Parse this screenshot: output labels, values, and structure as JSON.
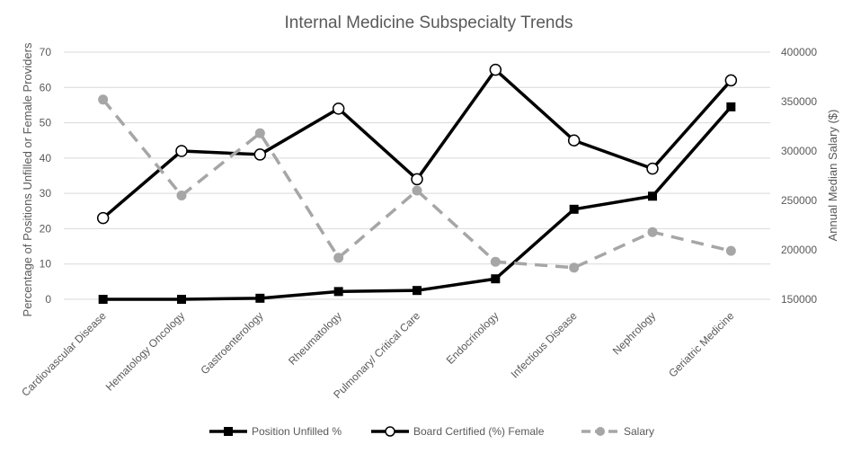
{
  "chart_data": {
    "type": "line",
    "title": "Internal Medicine Subspecialty Trends",
    "ylabel": "Percentage of Positions Unfilled or Female Providers",
    "y2label": "Annual Median Salary ($)",
    "xlabel": "",
    "ylim": [
      0,
      70
    ],
    "y2lim": [
      150000,
      400000
    ],
    "yticks": [
      "0",
      "10",
      "20",
      "30",
      "40",
      "50",
      "60",
      "70"
    ],
    "y2ticks": [
      "150000",
      "200000",
      "250000",
      "300000",
      "350000",
      "400000"
    ],
    "grid": true,
    "legend_position": "bottom",
    "categories": [
      "Cardiovascular Disease",
      "Hematology Oncology",
      "Gastroenterology",
      "Rheumatology",
      "Pulmonary/ Critical Care",
      "Endocrinology",
      "Infectious Disease",
      "Nephrology",
      "Geriatric Medicine"
    ],
    "series": [
      {
        "name": "Position Unfilled %",
        "axis": "left",
        "color": "#000000",
        "marker": "square",
        "dash": false,
        "values": [
          0,
          0,
          0.3,
          2.2,
          2.5,
          5.8,
          25.5,
          29.2,
          54.5
        ]
      },
      {
        "name": "Board Certified (%) Female",
        "axis": "left",
        "color": "#000000",
        "marker": "circle-open",
        "dash": false,
        "values": [
          23,
          42,
          41,
          54,
          34,
          65,
          45,
          37,
          62
        ]
      },
      {
        "name": "Salary",
        "axis": "right",
        "color": "#a6a6a6",
        "marker": "circle",
        "dash": true,
        "values": [
          352000,
          255000,
          318000,
          192000,
          260000,
          188000,
          182000,
          218000,
          199000
        ]
      }
    ]
  }
}
